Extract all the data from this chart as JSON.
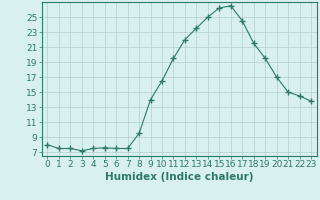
{
  "x": [
    0,
    1,
    2,
    3,
    4,
    5,
    6,
    7,
    8,
    9,
    10,
    11,
    12,
    13,
    14,
    15,
    16,
    17,
    18,
    19,
    20,
    21,
    22,
    23
  ],
  "y": [
    8.0,
    7.5,
    7.5,
    7.2,
    7.5,
    7.6,
    7.5,
    7.5,
    9.5,
    14.0,
    16.5,
    19.5,
    22.0,
    23.5,
    25.0,
    26.2,
    26.5,
    24.5,
    21.5,
    19.5,
    17.0,
    15.0,
    14.5,
    13.8
  ],
  "line_color": "#2d7a6a",
  "marker": "+",
  "marker_size": 4,
  "bg_color": "#d8f0ee",
  "grid_color": "#b0d0cc",
  "xlabel": "Humidex (Indice chaleur)",
  "ylabel": "",
  "yticks": [
    7,
    9,
    11,
    13,
    15,
    17,
    19,
    21,
    23,
    25
  ],
  "ylim": [
    6.5,
    27.0
  ],
  "xlim": [
    -0.5,
    23.5
  ],
  "xticks": [
    0,
    1,
    2,
    3,
    4,
    5,
    6,
    7,
    8,
    9,
    10,
    11,
    12,
    13,
    14,
    15,
    16,
    17,
    18,
    19,
    20,
    21,
    22,
    23
  ],
  "axis_color": "#2d7a6a",
  "tick_label_color": "#2d7a6a",
  "xlabel_color": "#2d7a6a",
  "xlabel_fontsize": 7.5,
  "tick_fontsize": 6.5
}
